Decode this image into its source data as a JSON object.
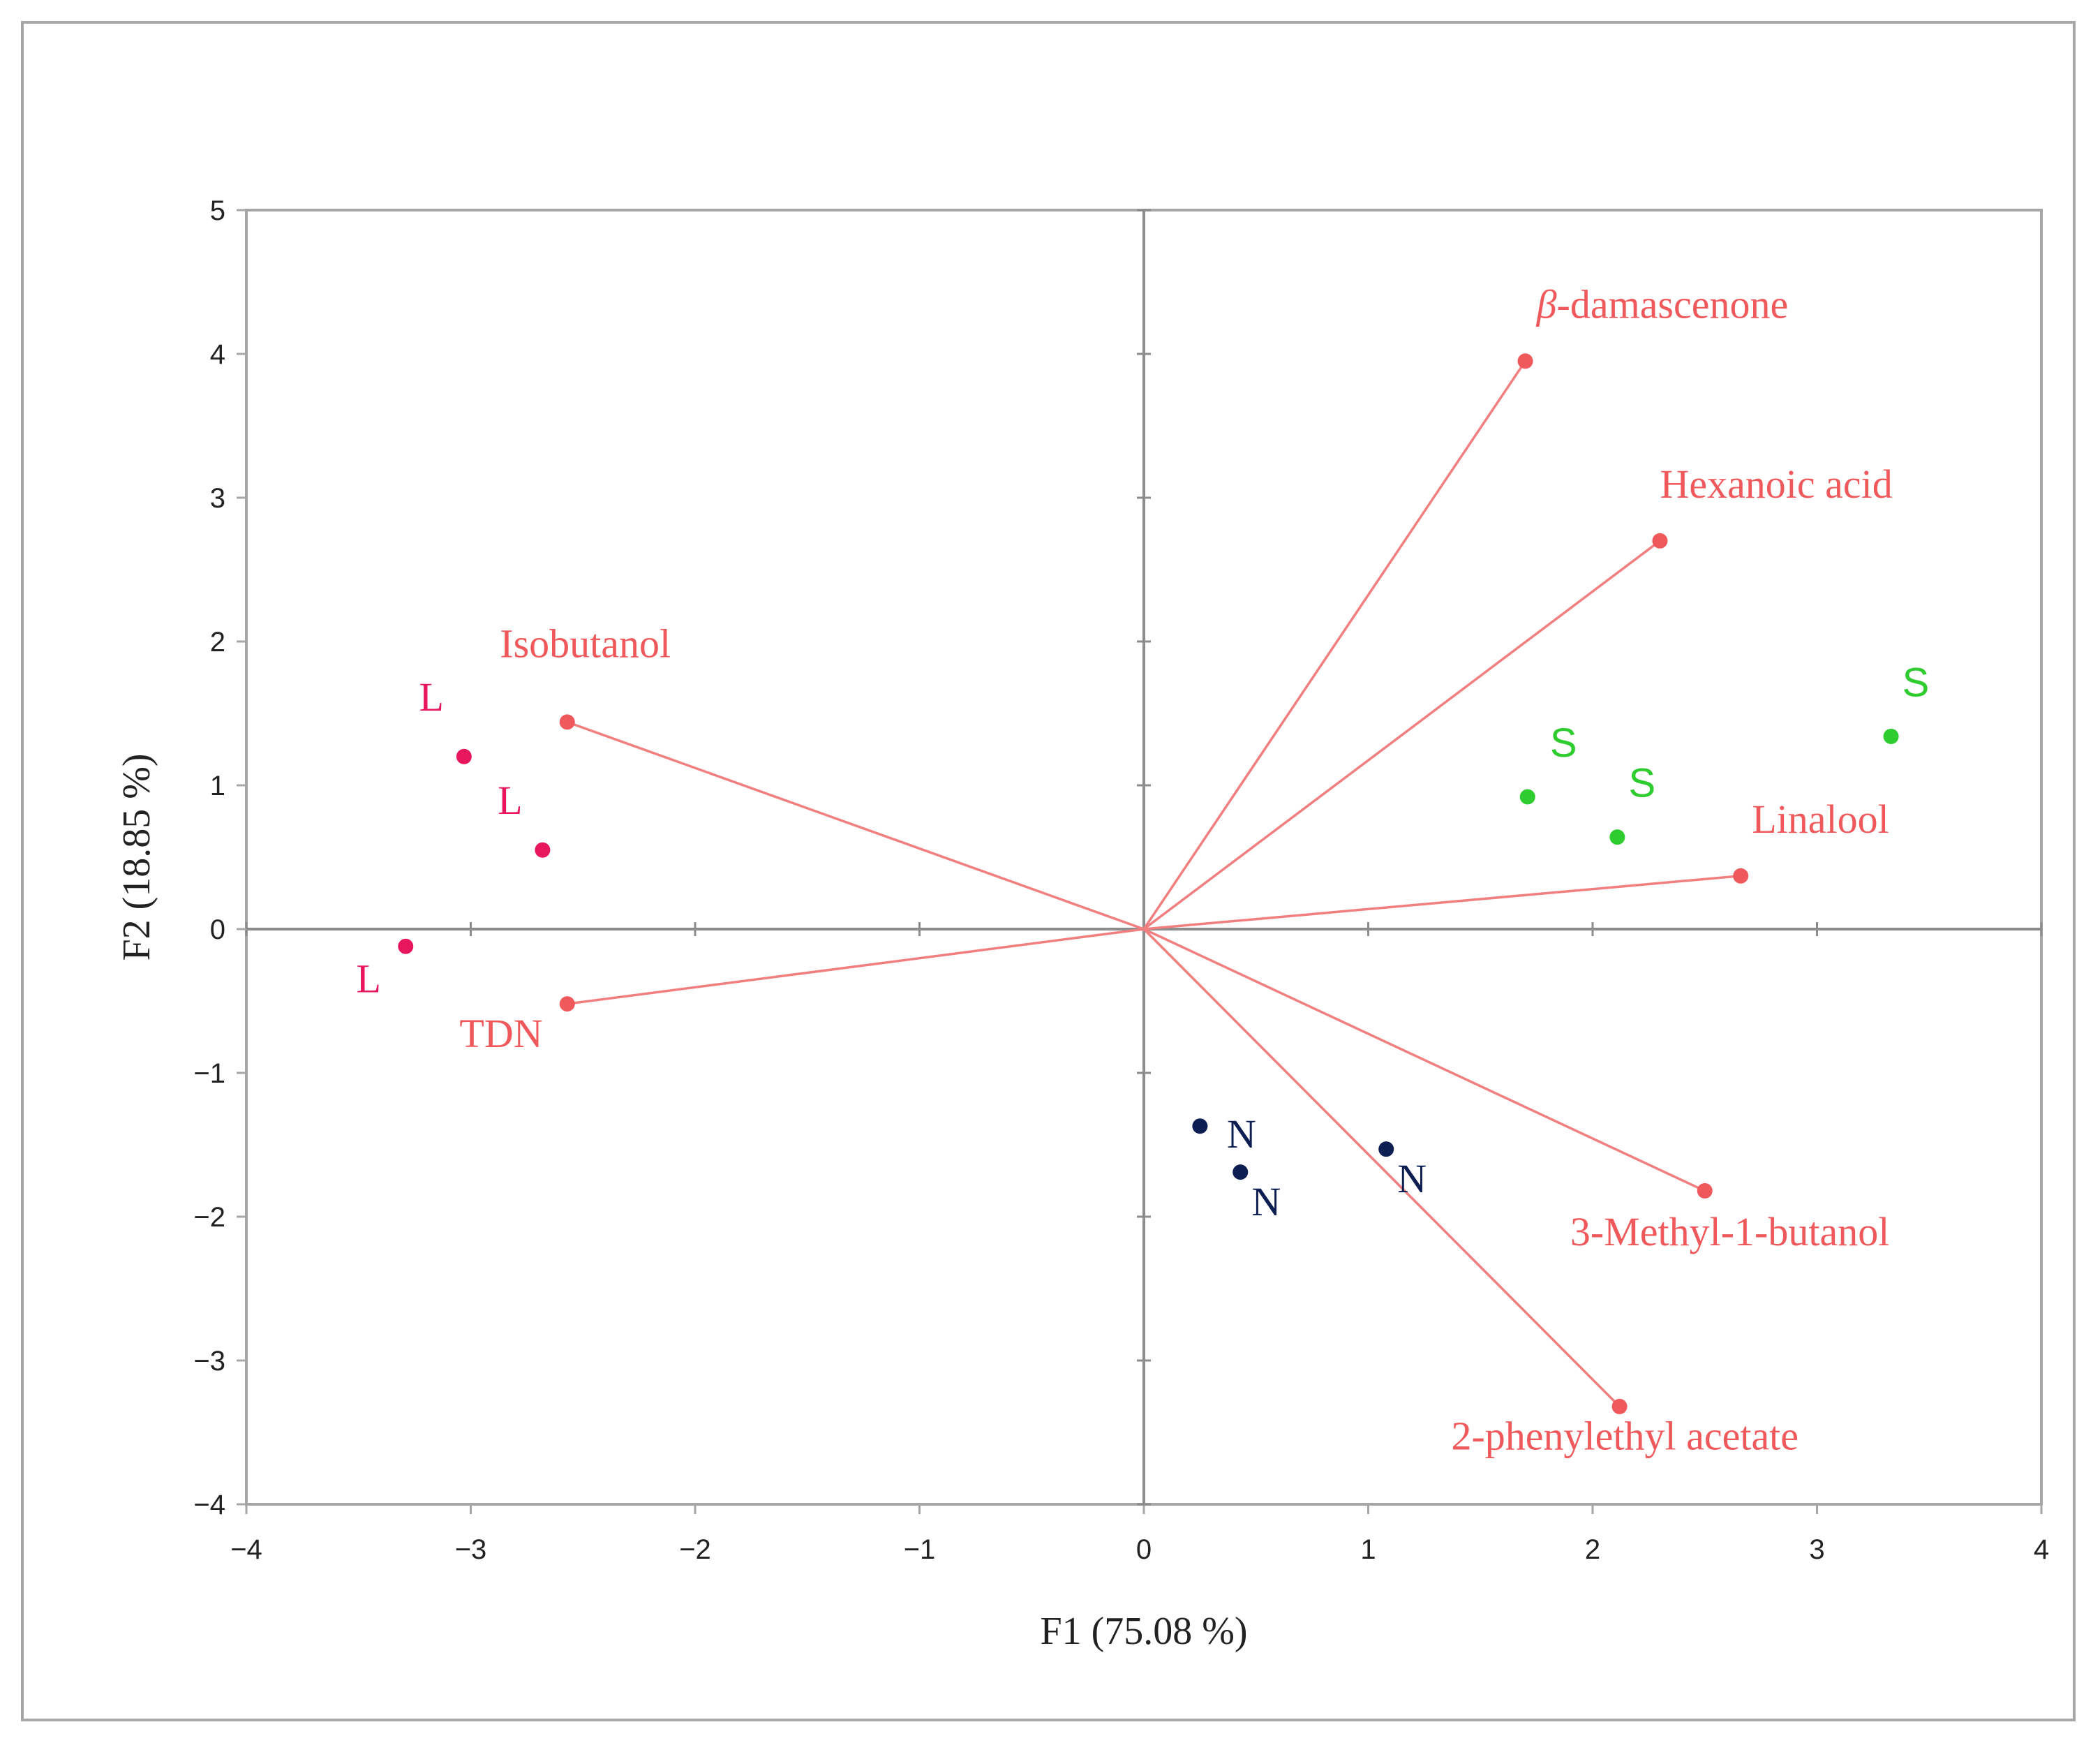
{
  "chart_data": {
    "type": "scatter",
    "subtype": "pca-biplot",
    "title": "",
    "xlabel": "F1 (75.08 %)",
    "ylabel": "F2 (18.85 %)",
    "xlim": [
      -4,
      4
    ],
    "ylim": [
      -4,
      5
    ],
    "xticks": [
      -4,
      -3,
      -2,
      -1,
      0,
      1,
      2,
      3,
      4
    ],
    "yticks": [
      -4,
      -3,
      -2,
      -1,
      0,
      1,
      2,
      3,
      4,
      5
    ],
    "xtick_labels": [
      "−4",
      "−3",
      "−2",
      "−1",
      "0",
      "1",
      "2",
      "3",
      "4"
    ],
    "ytick_labels": [
      "−4",
      "−3",
      "−2",
      "−1",
      "0",
      "1",
      "2",
      "3",
      "4",
      "5"
    ],
    "grid": false,
    "variables": [
      {
        "name": "β-damascenone",
        "italic_prefix": "β",
        "rest": "-damascenone",
        "x": 1.7,
        "y": 3.95,
        "label_dx": 0.05,
        "label_dy": 0.3,
        "anchor": "start"
      },
      {
        "name": "Hexanoic acid",
        "x": 2.3,
        "y": 2.7,
        "label_dx": 0.0,
        "label_dy": 0.3,
        "anchor": "start"
      },
      {
        "name": "Linalool",
        "x": 2.66,
        "y": 0.37,
        "label_dx": 0.05,
        "label_dy": 0.3,
        "anchor": "start"
      },
      {
        "name": "3-Methyl-1-butanol",
        "x": 2.5,
        "y": -1.82,
        "label_dx": -0.6,
        "label_dy": -0.38,
        "anchor": "start"
      },
      {
        "name": "2-phenylethyl acetate",
        "x": 2.12,
        "y": -3.32,
        "label_dx": -0.75,
        "label_dy": -0.3,
        "anchor": "start"
      },
      {
        "name": "TDN",
        "x": -2.57,
        "y": -0.52,
        "label_dx": -0.48,
        "label_dy": -0.3,
        "anchor": "start"
      },
      {
        "name": "Isobutanol",
        "x": -2.57,
        "y": 1.44,
        "label_dx": -0.3,
        "label_dy": 0.45,
        "anchor": "start"
      }
    ],
    "observations": [
      {
        "group": "L",
        "label": "L",
        "x": -3.03,
        "y": 1.2,
        "label_dx": -0.2,
        "label_dy": 0.32
      },
      {
        "group": "L",
        "label": "L",
        "x": -2.68,
        "y": 0.55,
        "label_dx": -0.2,
        "label_dy": 0.25
      },
      {
        "group": "L",
        "label": "L",
        "x": -3.29,
        "y": -0.12,
        "label_dx": -0.22,
        "label_dy": -0.32
      },
      {
        "group": "S",
        "label": "S",
        "x": 1.71,
        "y": 0.92,
        "label_dx": 0.1,
        "label_dy": 0.28
      },
      {
        "group": "S",
        "label": "S",
        "x": 2.11,
        "y": 0.64,
        "label_dx": 0.05,
        "label_dy": 0.28
      },
      {
        "group": "S",
        "label": "S",
        "x": 3.33,
        "y": 1.34,
        "label_dx": 0.05,
        "label_dy": 0.28
      },
      {
        "group": "N",
        "label": "N",
        "x": 0.25,
        "y": -1.37,
        "label_dx": 0.12,
        "label_dy": -0.15
      },
      {
        "group": "N",
        "label": "N",
        "x": 0.43,
        "y": -1.69,
        "label_dx": 0.05,
        "label_dy": -0.3
      },
      {
        "group": "N",
        "label": "N",
        "x": 1.08,
        "y": -1.53,
        "label_dx": 0.05,
        "label_dy": -0.3
      }
    ],
    "colors": {
      "variable": "#f0595b",
      "vector_line": "#f17f80",
      "L": "#e8175d",
      "S": "#2ecc2e",
      "N": "#0c1e52",
      "axis": "#a6a6a6",
      "zero_line": "#8c8c8c"
    }
  }
}
